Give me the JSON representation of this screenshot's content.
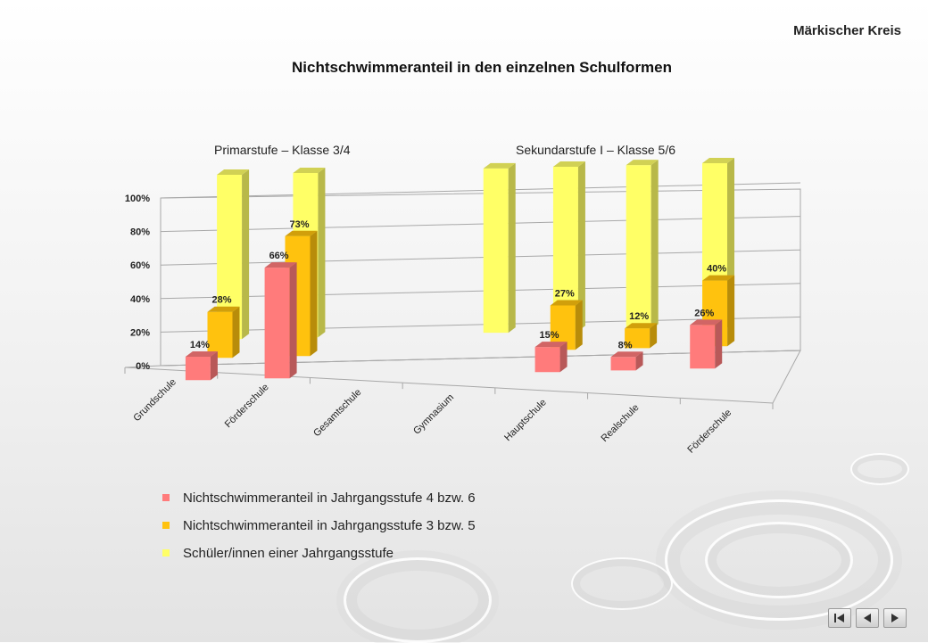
{
  "header": {
    "region": "Märkischer Kreis",
    "title": "Nichtschwimmeranteil in den einzelnen Schulformen"
  },
  "groups": [
    {
      "label": "Primarstufe –  Klasse 3/4"
    },
    {
      "label": "Sekundarstufe I –  Klasse 5/6"
    }
  ],
  "nav": {
    "first_icon": "first-page-icon",
    "prev_icon": "previous-icon",
    "next_icon": "next-icon"
  },
  "chart_data": {
    "type": "bar",
    "three_d": true,
    "ylim": [
      0,
      100
    ],
    "yticks": [
      "0%",
      "20%",
      "40%",
      "60%",
      "80%",
      "100%"
    ],
    "categories": [
      "Grundschule",
      "Förderschule",
      "Gesamtschule",
      "Gymnasium",
      "Hauptschule",
      "Realschule",
      "Förderschule"
    ],
    "series": [
      {
        "name": "Nichtschwimmeranteil in Jahrgangsstufe 4 bzw. 6",
        "color": "#ff7b7b",
        "values": [
          14,
          66,
          null,
          null,
          15,
          8,
          26
        ]
      },
      {
        "name": "Nichtschwimmeranteil in Jahrgangsstufe 3 bzw. 5",
        "color": "#ffc20e",
        "values": [
          28,
          73,
          null,
          null,
          27,
          12,
          40
        ]
      },
      {
        "name": "Schüler/innen einer Jahrgangsstufe",
        "color": "#ffff66",
        "values": [
          100,
          100,
          null,
          100,
          100,
          100,
          100
        ]
      }
    ],
    "data_labels": [
      [
        "14%",
        "66%",
        null,
        null,
        "15%",
        "8%",
        "26%"
      ],
      [
        "28%",
        "73%",
        null,
        null,
        "27%",
        "12%",
        "40%"
      ],
      [
        null,
        null,
        null,
        null,
        null,
        null,
        null
      ]
    ],
    "grid": true,
    "legend_position": "bottom-left"
  }
}
